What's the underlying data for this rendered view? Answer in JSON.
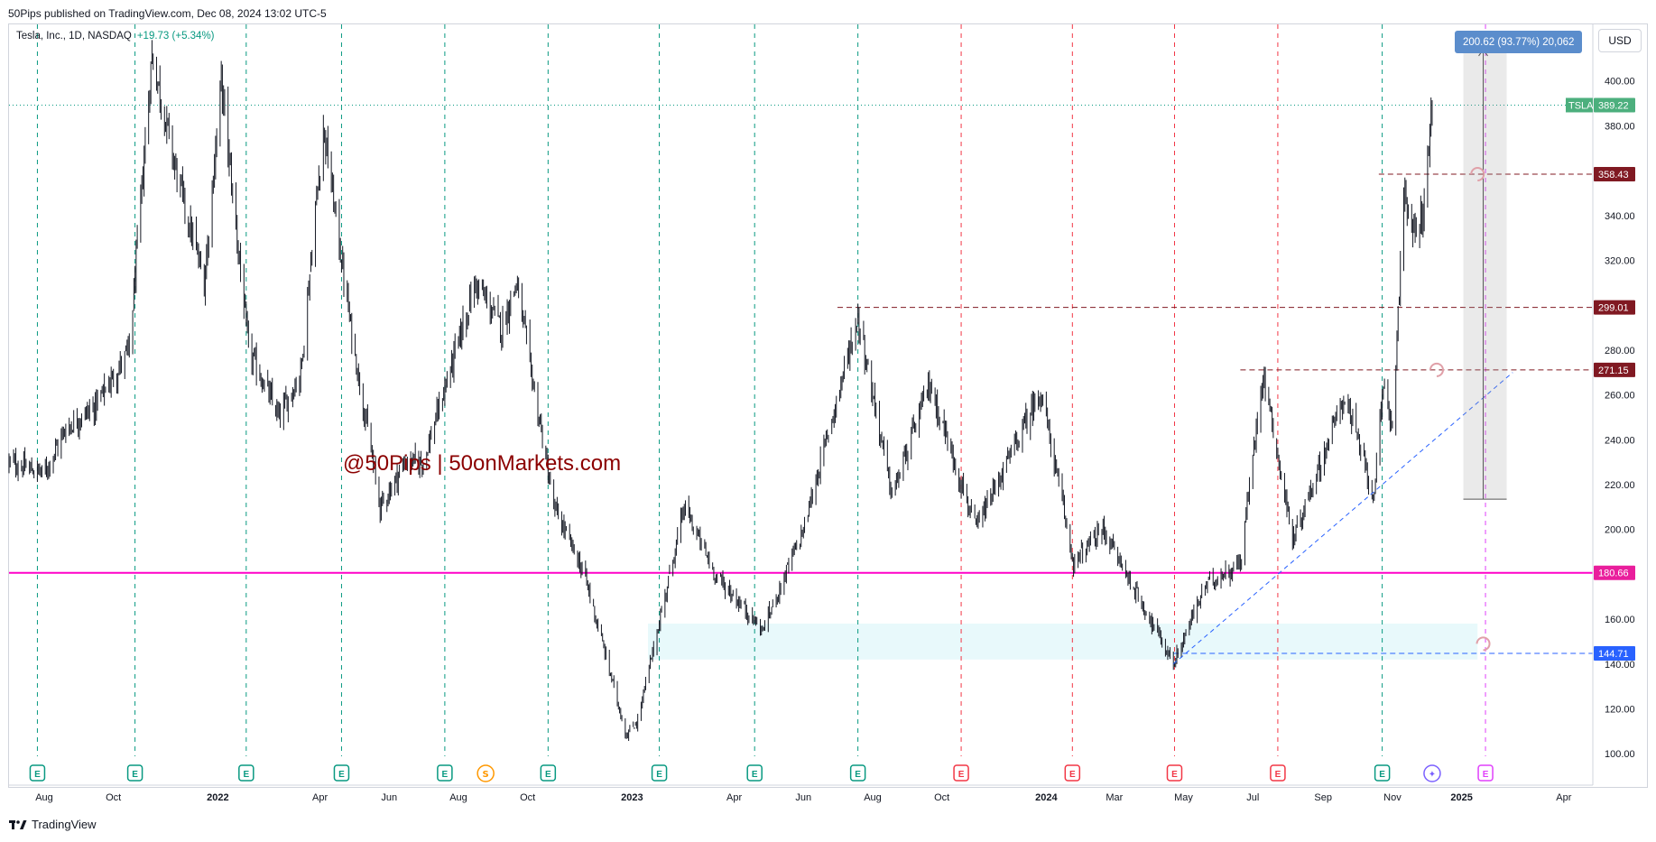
{
  "header": {
    "published": "50Pips published on TradingView.com, Dec 08, 2024 13:02 UTC-5"
  },
  "legend": {
    "symbol": "Tesla, Inc., 1D, NASDAQ",
    "change": "+19.73 (+5.34%)"
  },
  "currency_button": "USD",
  "measure_label": "200.62 (93.77%) 20,062",
  "watermark": "@50Pips | 50onMarkets.com",
  "footer": {
    "brand": "TradingView"
  },
  "colors": {
    "up": "#089981",
    "down": "#f23645",
    "candle": "#131722",
    "support": "#ff00c8",
    "resistance": "#801922",
    "blue": "#2962ff",
    "zone": "#b2ebf2"
  },
  "chart_data": {
    "type": "candlestick",
    "symbol": "TSLA",
    "interval": "1D",
    "exchange": "NASDAQ",
    "x_range": [
      "2021-07",
      "2025-04"
    ],
    "ylim": [
      90,
      420
    ],
    "y_ticks": [
      100,
      120,
      140,
      160,
      180,
      200,
      220,
      240,
      260,
      280,
      300,
      320,
      340,
      360,
      380,
      400
    ],
    "x_tick_labels": [
      "Aug",
      "Oct",
      "2022",
      "Apr",
      "Jun",
      "Aug",
      "Oct",
      "2023",
      "Apr",
      "Jun",
      "Aug",
      "Oct",
      "2024",
      "Mar",
      "May",
      "Jul",
      "Sep",
      "Nov",
      "2025",
      "Apr"
    ],
    "x_tick_dates": [
      "2021-08-01",
      "2021-10-01",
      "2022-01-01",
      "2022-04-01",
      "2022-06-01",
      "2022-08-01",
      "2022-10-01",
      "2023-01-01",
      "2023-04-01",
      "2023-06-01",
      "2023-08-01",
      "2023-10-01",
      "2024-01-01",
      "2024-03-01",
      "2024-05-01",
      "2024-07-01",
      "2024-09-01",
      "2024-11-01",
      "2025-01-01",
      "2025-04-01"
    ],
    "price_path": [
      [
        "2021-07-01",
        230
      ],
      [
        "2021-08-01",
        225
      ],
      [
        "2021-08-20",
        245
      ],
      [
        "2021-09-15",
        255
      ],
      [
        "2021-10-15",
        280
      ],
      [
        "2021-11-04",
        412
      ],
      [
        "2021-11-25",
        360
      ],
      [
        "2021-12-20",
        310
      ],
      [
        "2022-01-04",
        400
      ],
      [
        "2022-01-28",
        280
      ],
      [
        "2022-02-24",
        250
      ],
      [
        "2022-03-15",
        270
      ],
      [
        "2022-04-04",
        380
      ],
      [
        "2022-04-28",
        290
      ],
      [
        "2022-05-24",
        210
      ],
      [
        "2022-06-15",
        230
      ],
      [
        "2022-07-01",
        230
      ],
      [
        "2022-08-16",
        310
      ],
      [
        "2022-09-08",
        290
      ],
      [
        "2022-09-21",
        310
      ],
      [
        "2022-10-24",
        210
      ],
      [
        "2022-11-20",
        180
      ],
      [
        "2022-12-27",
        108
      ],
      [
        "2023-01-06",
        115
      ],
      [
        "2023-02-16",
        210
      ],
      [
        "2023-03-15",
        180
      ],
      [
        "2023-04-26",
        155
      ],
      [
        "2023-06-01",
        200
      ],
      [
        "2023-07-19",
        295
      ],
      [
        "2023-08-18",
        215
      ],
      [
        "2023-09-20",
        265
      ],
      [
        "2023-10-31",
        200
      ],
      [
        "2023-12-27",
        262
      ],
      [
        "2024-01-25",
        185
      ],
      [
        "2024-02-20",
        200
      ],
      [
        "2024-04-22",
        140
      ],
      [
        "2024-05-20",
        175
      ],
      [
        "2024-06-20",
        185
      ],
      [
        "2024-07-10",
        271
      ],
      [
        "2024-08-05",
        195
      ],
      [
        "2024-09-20",
        260
      ],
      [
        "2024-10-15",
        215
      ],
      [
        "2024-10-25",
        265
      ],
      [
        "2024-11-01",
        245
      ],
      [
        "2024-11-11",
        350
      ],
      [
        "2024-11-20",
        330
      ],
      [
        "2024-11-29",
        345
      ],
      [
        "2024-12-06",
        389.22
      ]
    ],
    "last_price": 389.22,
    "last_price_label": "TSLA",
    "horizontal_levels": [
      {
        "value": 358.43,
        "label": "358.43",
        "style": "dashed",
        "color": "#801922",
        "from": "2024-10-20"
      },
      {
        "value": 299.01,
        "label": "299.01",
        "style": "dashed",
        "color": "#801922",
        "from": "2023-07-01"
      },
      {
        "value": 271.15,
        "label": "271.15",
        "style": "dashed",
        "color": "#801922",
        "from": "2024-06-20"
      },
      {
        "value": 180.66,
        "label": "180.66",
        "style": "solid",
        "color": "#ff00c8",
        "from": "2021-07-01"
      },
      {
        "value": 144.71,
        "label": "144.71",
        "style": "dashed",
        "color": "#2962ff",
        "from": "2024-04-22"
      }
    ],
    "support_zone": {
      "from": "2023-01-15",
      "to": "2025-01-15",
      "low": 142,
      "high": 158
    },
    "trendline": {
      "from": [
        "2024-04-22",
        140
      ],
      "to": [
        "2025-02-15",
        270
      ]
    },
    "measure": {
      "date": "2025-01-20",
      "low": 213.5,
      "high": 414,
      "label": "200.62 (93.77%) 20,062"
    },
    "event_lines": [
      {
        "date": "2021-07-26",
        "type": "E",
        "color": "#089981"
      },
      {
        "date": "2021-10-20",
        "type": "E",
        "color": "#089981"
      },
      {
        "date": "2022-01-26",
        "type": "E",
        "color": "#089981"
      },
      {
        "date": "2022-04-20",
        "type": "E",
        "color": "#089981"
      },
      {
        "date": "2022-07-20",
        "type": "E",
        "color": "#089981"
      },
      {
        "date": "2022-10-19",
        "type": "E",
        "color": "#089981"
      },
      {
        "date": "2023-01-25",
        "type": "E",
        "color": "#089981"
      },
      {
        "date": "2023-04-19",
        "type": "E",
        "color": "#089981"
      },
      {
        "date": "2023-07-19",
        "type": "E",
        "color": "#089981"
      },
      {
        "date": "2023-10-18",
        "type": "E",
        "color": "#f23645"
      },
      {
        "date": "2024-01-24",
        "type": "E",
        "color": "#f23645"
      },
      {
        "date": "2024-04-23",
        "type": "E",
        "color": "#f23645"
      },
      {
        "date": "2024-07-23",
        "type": "E",
        "color": "#f23645"
      },
      {
        "date": "2024-10-23",
        "type": "E",
        "color": "#089981"
      },
      {
        "date": "2025-01-22",
        "type": "E",
        "color": "#e040fb"
      }
    ],
    "other_markers": [
      {
        "date": "2022-08-25",
        "type": "S",
        "color": "#ff9800"
      },
      {
        "date": "2024-12-06",
        "type": "✦",
        "color": "#7b61ff"
      }
    ]
  }
}
